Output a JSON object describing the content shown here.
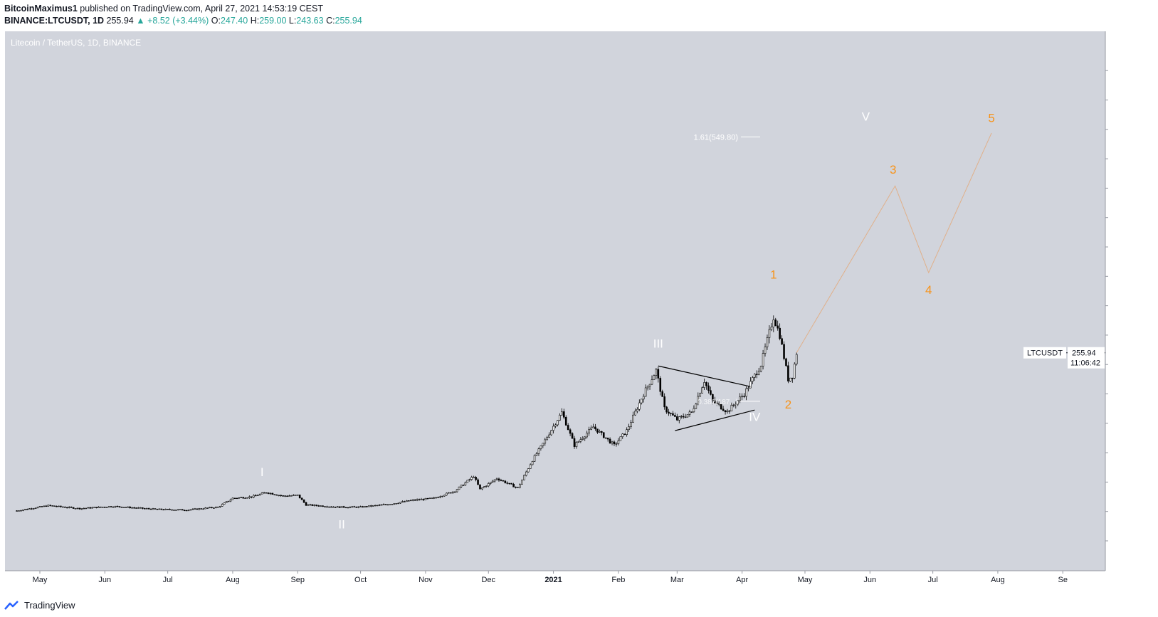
{
  "header": {
    "author": "BitcoinMaximus1",
    "published": "published on TradingView.com, April 27, 2021 14:53:19 CEST",
    "symbol": "BINANCE:LTCUSDT, 1D",
    "last": "255.94",
    "change": "+8.52 (+3.44%)",
    "o_label": "O:",
    "o": "247.40",
    "h_label": "H:",
    "h": "259.00",
    "l_label": "L:",
    "l": "243.63",
    "c_label": "C:",
    "c": "255.94"
  },
  "footer": {
    "brand": "TradingView"
  },
  "colors": {
    "plot_bg": "#d1d4dc",
    "candle": "#000000",
    "wave_orange": "#f7931a",
    "wave_white": "#ffffff",
    "projection_line": "#e0b08a"
  },
  "chart_data": {
    "type": "candlestick",
    "title": "Litecoin / TetherUS, 1D, BINANCE",
    "y_unit": "USDT",
    "y_ticks": [
      "640.00",
      "600.00",
      "560.00",
      "520.00",
      "480.00",
      "440.00",
      "400.00",
      "360.00",
      "320.00",
      "280.00",
      "240.00",
      "200.00",
      "160.00",
      "120.00",
      "80.00",
      "40.00",
      "0.00"
    ],
    "ylim": [
      0,
      680
    ],
    "x_ticks": [
      "May",
      "Jun",
      "Jul",
      "Aug",
      "Sep",
      "Oct",
      "Nov",
      "Dec",
      "2021",
      "Feb",
      "Mar",
      "Apr",
      "May",
      "Jun",
      "Jul",
      "Aug",
      "Se"
    ],
    "price_path": [
      [
        "2020-04-20",
        41
      ],
      [
        "2020-05-05",
        48
      ],
      [
        "2020-05-20",
        44
      ],
      [
        "2020-06-05",
        47
      ],
      [
        "2020-06-25",
        43
      ],
      [
        "2020-07-10",
        42
      ],
      [
        "2020-07-25",
        46
      ],
      [
        "2020-08-01",
        58
      ],
      [
        "2020-08-10",
        60
      ],
      [
        "2020-08-17",
        66
      ],
      [
        "2020-08-25",
        61
      ],
      [
        "2020-09-01",
        62
      ],
      [
        "2020-09-05",
        49
      ],
      [
        "2020-09-20",
        46
      ],
      [
        "2020-10-01",
        46
      ],
      [
        "2020-10-15",
        50
      ],
      [
        "2020-10-25",
        55
      ],
      [
        "2020-11-05",
        58
      ],
      [
        "2020-11-15",
        68
      ],
      [
        "2020-11-24",
        88
      ],
      [
        "2020-11-27",
        70
      ],
      [
        "2020-12-05",
        85
      ],
      [
        "2020-12-15",
        72
      ],
      [
        "2020-12-22",
        110
      ],
      [
        "2020-12-27",
        132
      ],
      [
        "2021-01-05",
        175
      ],
      [
        "2021-01-11",
        130
      ],
      [
        "2021-01-20",
        155
      ],
      [
        "2021-01-30",
        130
      ],
      [
        "2021-02-05",
        150
      ],
      [
        "2021-02-13",
        200
      ],
      [
        "2021-02-19",
        232
      ],
      [
        "2021-02-23",
        180
      ],
      [
        "2021-03-01",
        165
      ],
      [
        "2021-03-08",
        175
      ],
      [
        "2021-03-14",
        218
      ],
      [
        "2021-03-18",
        190
      ],
      [
        "2021-03-25",
        176
      ],
      [
        "2021-04-02",
        200
      ],
      [
        "2021-04-10",
        240
      ],
      [
        "2021-04-16",
        305
      ],
      [
        "2021-04-19",
        280
      ],
      [
        "2021-04-23",
        220
      ],
      [
        "2021-04-25",
        225
      ],
      [
        "2021-04-27",
        256
      ]
    ],
    "current": {
      "label": "LTCUSDT",
      "price": "255.94",
      "countdown": "11:06:42"
    },
    "fib": {
      "label": "1.61(549.80)",
      "value": 549.8
    },
    "fib_low": {
      "label": "0.382(187...)",
      "value": 190
    },
    "triangle": {
      "upper": [
        [
          "2021-02-20",
          238
        ],
        [
          "2021-04-05",
          210
        ]
      ],
      "lower": [
        [
          "2021-02-28",
          150
        ],
        [
          "2021-04-07",
          178
        ]
      ]
    },
    "projection": [
      [
        "2021-04-27",
        256
      ],
      [
        "2021-06-13",
        483
      ],
      [
        "2021-06-29",
        365
      ],
      [
        "2021-07-29",
        555
      ]
    ],
    "wave_labels": [
      {
        "text": "I",
        "date": "2020-08-15",
        "price": 88,
        "color": "white"
      },
      {
        "text": "II",
        "date": "2020-09-22",
        "price": 17,
        "color": "white"
      },
      {
        "text": "III",
        "date": "2021-02-20",
        "price": 263,
        "color": "white"
      },
      {
        "text": "IV",
        "date": "2021-04-07",
        "price": 163,
        "color": "white"
      },
      {
        "text": "V",
        "date": "2021-05-30",
        "price": 572,
        "color": "white"
      },
      {
        "text": "1",
        "date": "2021-04-16",
        "price": 357,
        "color": "orange"
      },
      {
        "text": "2",
        "date": "2021-04-23",
        "price": 180,
        "color": "orange"
      },
      {
        "text": "3",
        "date": "2021-06-12",
        "price": 500,
        "color": "orange"
      },
      {
        "text": "4",
        "date": "2021-06-29",
        "price": 336,
        "color": "orange"
      },
      {
        "text": "5",
        "date": "2021-07-29",
        "price": 570,
        "color": "orange"
      }
    ]
  }
}
